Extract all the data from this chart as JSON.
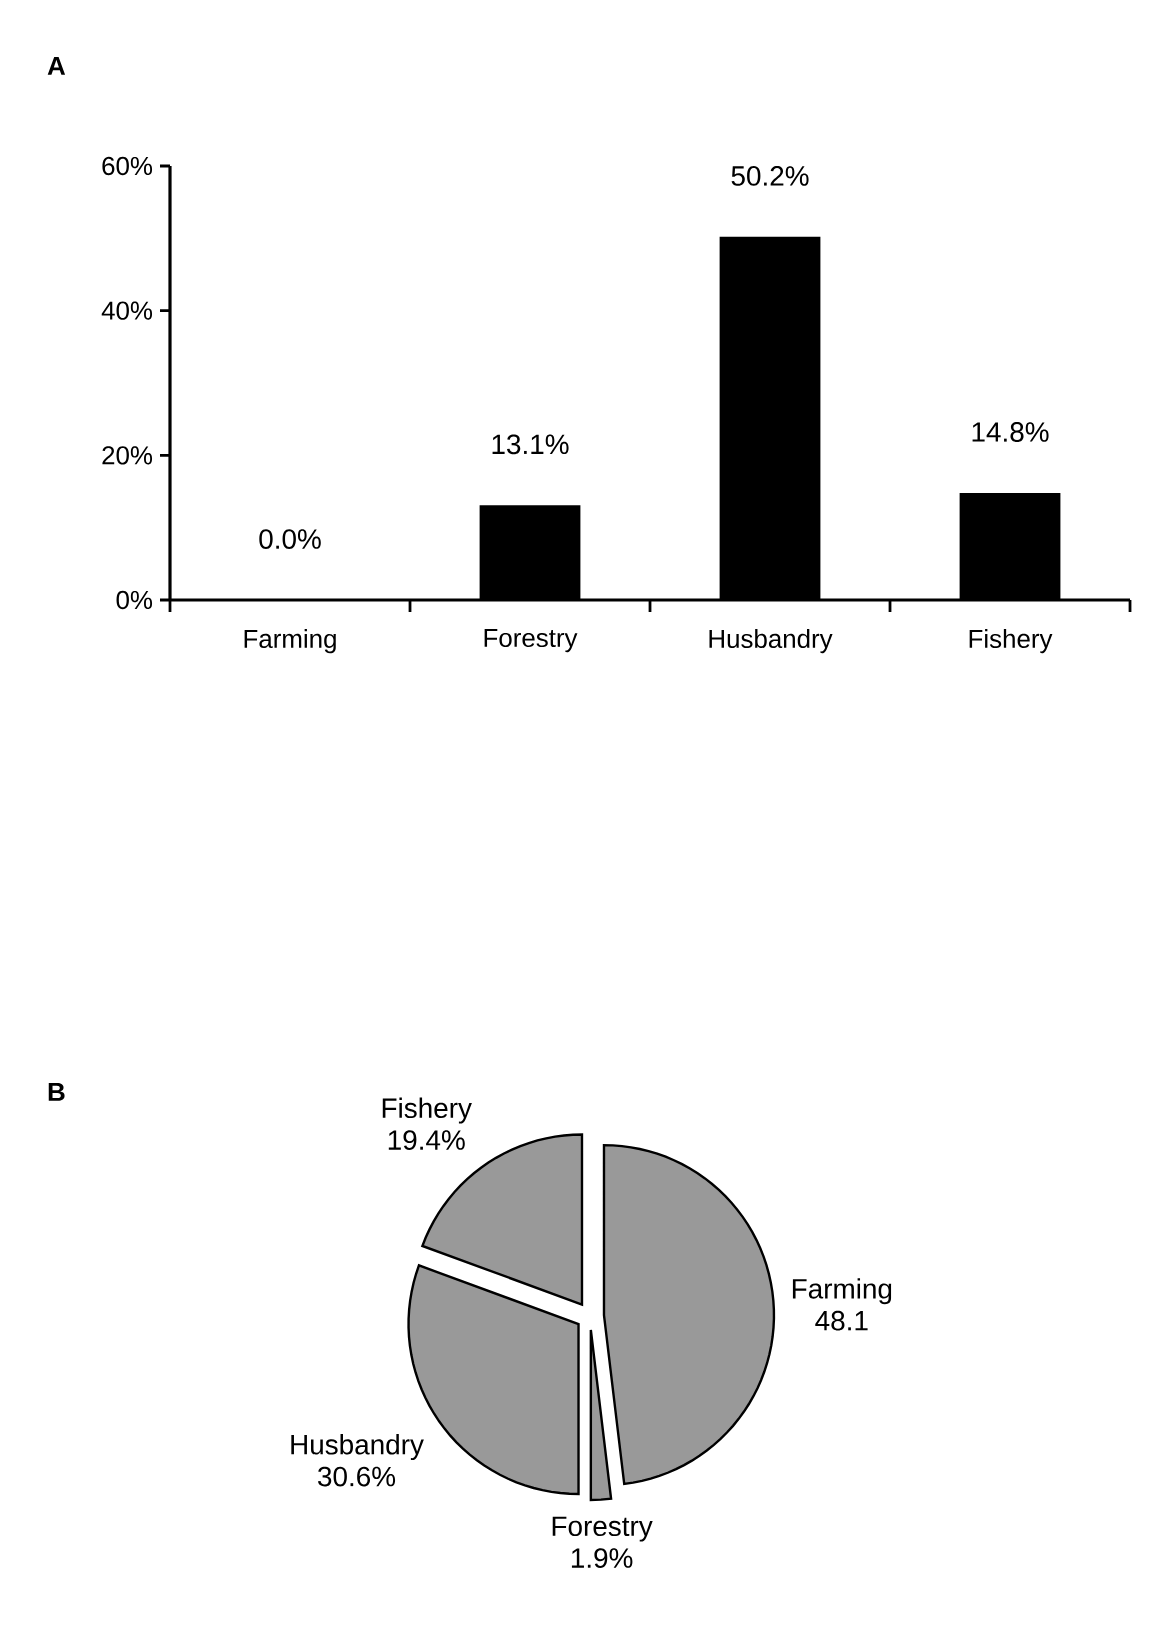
{
  "chart_data": [
    {
      "type": "bar",
      "title": "A",
      "categories": [
        "Farming",
        "Forestry",
        "Husbandry",
        "Fishery"
      ],
      "values": [
        0.0,
        13.1,
        50.2,
        14.8
      ],
      "color": "#000000",
      "value_labels": [
        "0.0%",
        "13.1%",
        "50.2%",
        "14.8%"
      ],
      "ylim": [
        0,
        60
      ],
      "yticks": [
        {
          "value": 0,
          "label": "0%"
        },
        {
          "value": 20,
          "label": "20%"
        },
        {
          "value": 40,
          "label": "40%"
        },
        {
          "value": 60,
          "label": "60%"
        }
      ],
      "grid": false
    },
    {
      "type": "pie",
      "title": "B",
      "categories": [
        "Farming",
        "Forestry",
        "Husbandry",
        "Fishery"
      ],
      "values": [
        48.1,
        1.9,
        30.6,
        19.4
      ],
      "colors": [
        "#999999",
        "#999999",
        "#999999",
        "#999999"
      ],
      "value_labels": [
        "48.1",
        "1.9%",
        "30.6%",
        "19.4%"
      ]
    }
  ]
}
